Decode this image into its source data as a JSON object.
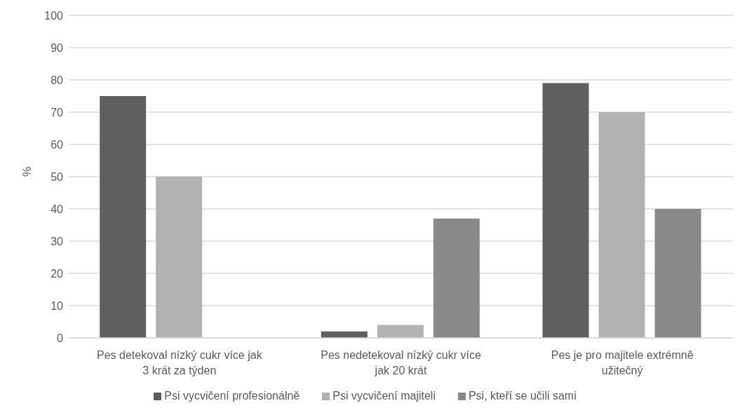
{
  "chart_data": {
    "type": "bar",
    "ylabel": "%",
    "categories": [
      "Pes detekoval nízký cukr více jak 3 krát za týden",
      "Pes nedetekoval nízký cukr více jak 20 krát",
      "Pes je pro majitele extrémně užitečný"
    ],
    "series": [
      {
        "name": "Psi vycvičení profesionálně",
        "color": "#5f5f5f",
        "values": [
          75,
          2,
          79
        ]
      },
      {
        "name": "Psi vycvičení majiteli",
        "color": "#b2b2b2",
        "values": [
          50,
          4,
          70
        ]
      },
      {
        "name": "Psi, kteří se učili sami",
        "color": "#898989",
        "values": [
          null,
          37,
          40
        ]
      }
    ],
    "ylim": [
      0,
      100
    ],
    "yticks": [
      0,
      10,
      20,
      30,
      40,
      50,
      60,
      70,
      80,
      90,
      100
    ],
    "grid": "y",
    "legend": "bottom"
  }
}
